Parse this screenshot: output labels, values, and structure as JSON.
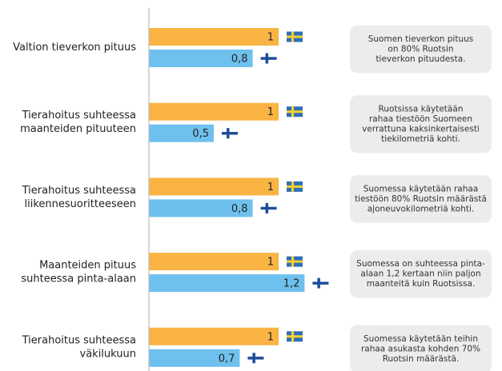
{
  "chart_data": {
    "type": "bar",
    "categories": [
      [
        "Valtion tieverkon pituus"
      ],
      [
        "Tierahoitus suhteessa",
        "maanteiden pituuteen"
      ],
      [
        "Tierahoitus suhteessa",
        "liikennesuoritteeseen"
      ],
      [
        "Maanteiden pituus",
        "suhteessa pinta-alaan"
      ],
      [
        "Tierahoitus suhteessa",
        "väkilukuun"
      ]
    ],
    "series": [
      {
        "color": "#f9b443",
        "values": [
          1,
          1,
          1,
          1,
          1
        ]
      },
      {
        "color": "#6ec1ee",
        "values": [
          0.8,
          0.5,
          0.8,
          1.2,
          0.7
        ],
        "value_labels": [
          "0,8",
          "0,5",
          "0,8",
          "1,2",
          "0,7"
        ]
      }
    ],
    "xlim": [
      0,
      1.2
    ],
    "annotations": [
      [
        "Suomen tieverkon pituus",
        "on 80% Ruotsin",
        "tieverkon pituudesta."
      ],
      [
        "Ruotsissa käytetään",
        "rahaa tiestöön Suomeen",
        "verrattuna kaksinkertaisesti",
        "tiekilometriä kohti."
      ],
      [
        "Suomessa käytetään rahaa",
        "tiestöön 80% Ruotsin määrästä",
        "ajoneuvokilometriä kohti."
      ],
      [
        "Suomessa on suhteessa pinta-",
        "alaan 1,2 kertaan niin paljon",
        "maanteitä kuin Ruotsissa."
      ],
      [
        "Suomessa käytetään teihin",
        "rahaa asukasta kohden 70%",
        "Ruotsin määrästä."
      ]
    ]
  }
}
